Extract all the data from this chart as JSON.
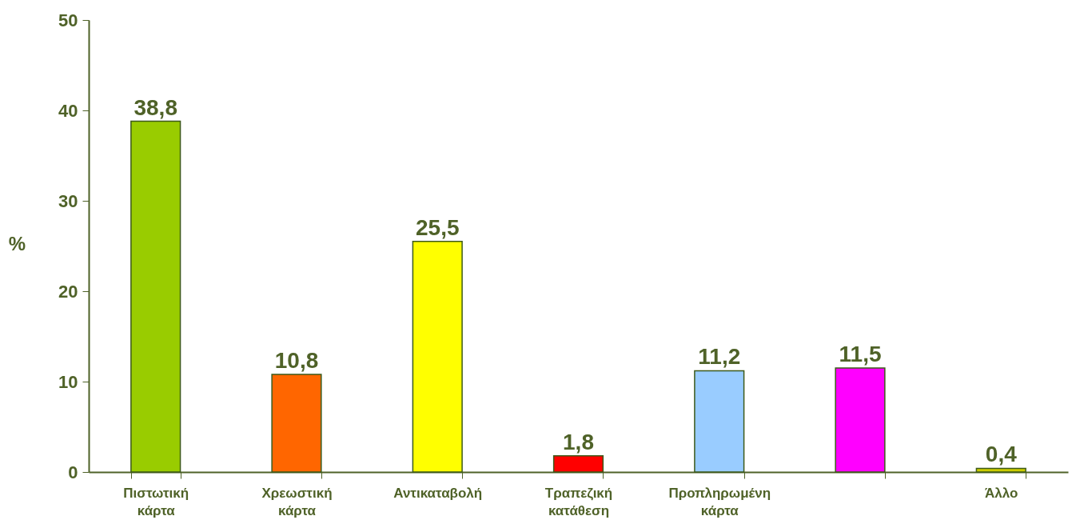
{
  "chart_data": {
    "type": "bar",
    "ylabel": "%",
    "categories": [
      "Πιστωτική κάρτα",
      "Χρεωστική κάρτα",
      "Αντικαταβολή",
      "Τραπεζική κατάθεση",
      "Προπληρωμένη κάρτα",
      null,
      "Άλλο"
    ],
    "values": [
      38.8,
      10.8,
      25.5,
      1.8,
      11.2,
      11.5,
      0.4
    ],
    "colors": [
      "#99cc00",
      "#ff6600",
      "#ffff00",
      "#ff0000",
      "#99ccff",
      "#ff00ff",
      "#cccc00"
    ],
    "value_labels": [
      "38,8",
      "10,8",
      "25,5",
      "1,8",
      "11,2",
      "11,5",
      "0,4"
    ],
    "ylim": [
      0,
      50
    ],
    "yticks": [
      0,
      10,
      20,
      30,
      40,
      50
    ],
    "grid": false
  }
}
